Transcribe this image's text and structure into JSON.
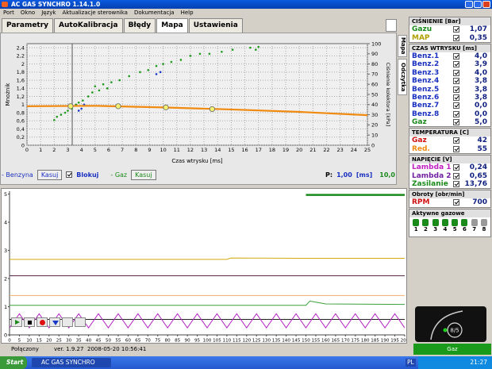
{
  "window": {
    "title": "AC GAS SYNCHRO   1.14.1.0"
  },
  "menu": [
    "Port",
    "Okno",
    "Język",
    "Aktualizacje sterownika",
    "Dokumentacja",
    "Help"
  ],
  "tabs": [
    "Parametry",
    "AutoKalibracja",
    "Błędy",
    "Mapa",
    "Ustawienia"
  ],
  "side_tabs": [
    "Mapa",
    "Odczytka"
  ],
  "map_chart": {
    "type": "scatter",
    "x_label": "Czas wtrysku [ms]",
    "y_label": "Mnożnik",
    "y2_label": "Ciśnienie kolektora [kPa]",
    "xlim": [
      0,
      25
    ],
    "xticks": [
      0,
      1,
      2,
      3,
      4,
      5,
      6,
      7,
      8,
      9,
      10,
      11,
      12,
      13,
      14,
      15,
      16,
      17,
      18,
      19,
      20,
      21,
      22,
      23,
      24,
      25
    ],
    "ylim": [
      0,
      2.5
    ],
    "yticks": [
      0,
      {
        "value": 0.2,
        "label": "0,2"
      },
      {
        "value": 0.4,
        "label": "0,4"
      },
      {
        "value": 0.6,
        "label": "0,6"
      },
      {
        "value": 0.8,
        "label": "0,8"
      },
      1,
      {
        "value": 1.2,
        "label": "1,2"
      },
      {
        "value": 1.4,
        "label": "1,4"
      },
      {
        "value": 1.6,
        "label": "1,6"
      },
      {
        "value": 1.8,
        "label": "1,8"
      },
      2,
      {
        "value": 2.2,
        "label": "2,2"
      },
      {
        "value": 2.4,
        "label": "2,4"
      }
    ],
    "y2lim": [
      0,
      100
    ],
    "y2ticks": [
      0,
      10,
      20,
      30,
      40,
      50,
      60,
      70,
      80,
      90,
      100
    ],
    "grid": true,
    "series": [
      {
        "type": "scatter",
        "color": "#1f9a1f",
        "x": [
          2.0,
          2.2,
          2.5,
          2.8,
          3.0,
          3.3,
          3.6,
          3.8,
          4.1,
          4.5,
          4.8,
          5.0,
          5.3,
          5.6,
          5.9,
          6.2,
          6.8,
          7.5,
          8.3,
          8.9,
          9.5,
          10.0,
          10.6,
          11.3,
          12.0,
          12.7,
          13.4,
          14.3,
          15.1,
          16.4,
          17.0,
          16.8
        ],
        "y": [
          0.62,
          0.7,
          0.75,
          0.8,
          0.85,
          0.9,
          1.0,
          1.05,
          1.1,
          1.2,
          1.3,
          1.45,
          1.35,
          1.5,
          1.4,
          1.55,
          1.6,
          1.7,
          1.8,
          1.85,
          1.95,
          2.0,
          2.05,
          2.1,
          2.2,
          2.25,
          2.25,
          2.3,
          2.35,
          2.4,
          2.42,
          2.35
        ]
      },
      {
        "type": "scatter",
        "color": "#1838c8",
        "x": [
          3.8,
          4.0,
          4.2,
          9.5,
          9.8
        ],
        "y": [
          0.85,
          0.9,
          1.0,
          1.75,
          1.8
        ]
      },
      {
        "type": "line",
        "color": "#f08a10",
        "x": [
          0,
          5,
          10,
          15,
          20,
          25
        ],
        "y": [
          0.96,
          0.97,
          0.93,
          0.88,
          0.82,
          0.74
        ]
      },
      {
        "type": "circle",
        "color": "#f4f070",
        "x": [
          3.2,
          6.7,
          10.2,
          13.6
        ],
        "y": [
          0.96,
          0.96,
          0.93,
          0.89
        ]
      }
    ]
  },
  "map_controls": {
    "benzyna": "- Benzyna",
    "kasuj_benzyna": "Kasuj",
    "blokuj": "Blokuj",
    "gaz": "- Gaz",
    "kasuj_gaz": "Kasuj",
    "p_label": "P:",
    "p_value": "1,00",
    "p_unit": "[ms]",
    "p_value2": "10,0"
  },
  "trace_chart": {
    "type": "line",
    "xlim": [
      0,
      200
    ],
    "xticks": [
      0,
      5,
      10,
      15,
      20,
      25,
      30,
      35,
      40,
      45,
      50,
      55,
      60,
      65,
      70,
      75,
      80,
      85,
      90,
      95,
      100,
      105,
      110,
      115,
      120,
      125,
      130,
      135,
      140,
      145,
      150,
      155,
      160,
      165,
      170,
      175,
      180,
      185,
      190,
      195,
      200
    ],
    "ylim": [
      0,
      5.1
    ],
    "yticks": [
      0,
      1,
      2,
      3,
      4,
      5
    ],
    "series": [
      {
        "color": "#d4aa10",
        "x": [
          0,
          110,
          112,
          150,
          200
        ],
        "y": [
          2.68,
          2.68,
          2.73,
          2.72,
          2.72
        ]
      },
      {
        "color": "#5a2a50",
        "x": [
          0,
          200
        ],
        "y": [
          2.1,
          2.1
        ]
      },
      {
        "color": "#f0b070",
        "x": [
          0,
          200
        ],
        "y": [
          1.4,
          1.4
        ]
      },
      {
        "color": "#3aa03a",
        "x": [
          0,
          150,
          152,
          160,
          200
        ],
        "y": [
          1.05,
          1.05,
          1.2,
          1.1,
          1.08
        ]
      },
      {
        "color": "#1a8a1a",
        "x": [
          150,
          200
        ],
        "y": [
          4.97,
          4.97
        ]
      },
      {
        "color": "#222222",
        "x": [
          0,
          200
        ],
        "y": [
          0.55,
          0.55
        ]
      },
      {
        "color": "#b020c0",
        "x": [
          0,
          5,
          10,
          15,
          20,
          25,
          30,
          35,
          40,
          45,
          50,
          55,
          60,
          65,
          70,
          75,
          80,
          85,
          90,
          95,
          100,
          105,
          110,
          115,
          120,
          125,
          130,
          135,
          140,
          145,
          150,
          155,
          160,
          165,
          170,
          175,
          180,
          185,
          190,
          195,
          200
        ],
        "y": [
          0.25,
          0.75,
          0.25,
          0.75,
          0.25,
          0.75,
          0.25,
          0.75,
          0.25,
          0.75,
          0.25,
          0.75,
          0.25,
          0.75,
          0.25,
          0.75,
          0.25,
          0.75,
          0.25,
          0.75,
          0.25,
          0.75,
          0.25,
          0.75,
          0.25,
          0.75,
          0.25,
          0.75,
          0.25,
          0.75,
          0.25,
          0.75,
          0.25,
          0.75,
          0.25,
          0.75,
          0.25,
          0.75,
          0.25,
          0.75,
          0.25
        ]
      }
    ]
  },
  "panel": {
    "sections": [
      {
        "title": "CIŚNIENIE [Bar]",
        "rows": [
          {
            "label": "Gazu",
            "value": "1,07",
            "color": "#1a8a1a"
          },
          {
            "label": "MAP",
            "value": "0,35",
            "color": "#b0a000"
          }
        ]
      },
      {
        "title": "CZAS WTRYSKU [ms]",
        "rows": [
          {
            "label": "Benz.1",
            "value": "4,0",
            "color": "#1a30c0"
          },
          {
            "label": "Benz.2",
            "value": "3,9",
            "color": "#1a30c0"
          },
          {
            "label": "Benz.3",
            "value": "4,0",
            "color": "#1a30c0"
          },
          {
            "label": "Benz.4",
            "value": "3,8",
            "color": "#1a30c0"
          },
          {
            "label": "Benz.5",
            "value": "3,8",
            "color": "#1a30c0"
          },
          {
            "label": "Benz.6",
            "value": "3,8",
            "color": "#1a30c0"
          },
          {
            "label": "Benz.7",
            "value": "0,0",
            "color": "#1a30c0"
          },
          {
            "label": "Benz.8",
            "value": "0,0",
            "color": "#1a30c0"
          },
          {
            "label": "Gaz",
            "value": "5,0",
            "color": "#1a8a1a"
          }
        ]
      },
      {
        "title": "TEMPERATURA [C]",
        "rows": [
          {
            "label": "Gaz",
            "value": "42",
            "color": "#d01010"
          },
          {
            "label": "Red.",
            "value": "55",
            "color": "#f08a10"
          }
        ]
      },
      {
        "title": "NAPIĘCIE [V]",
        "rows": [
          {
            "label": "Lambda 1",
            "value": "0,24",
            "color": "#c020c0"
          },
          {
            "label": "Lambda 2",
            "value": "0,65",
            "color": "#7020a0"
          },
          {
            "label": "Zasilanie",
            "value": "13,76",
            "color": "#1a8a1a"
          }
        ]
      },
      {
        "title": "Obroty [obr/min]",
        "rows": [
          {
            "label": "RPM",
            "value": "700",
            "color": "#d01010"
          }
        ]
      }
    ],
    "active_title": "Aktywne gazowe",
    "active": [
      "1",
      "2",
      "3",
      "4",
      "5",
      "6",
      "7",
      "8"
    ],
    "active_on": [
      true,
      true,
      true,
      true,
      true,
      true,
      false,
      false
    ],
    "gauge": "8/5"
  },
  "status": {
    "connection": "Połączony",
    "version": "ver. 1.9.27",
    "datetime": "2008-05-20 10:56:41",
    "mode": "Gaz"
  },
  "taskbar": {
    "start": "Start",
    "app": "AC GAS SYNCHRO",
    "lang": "PL",
    "clock": "21:27"
  }
}
